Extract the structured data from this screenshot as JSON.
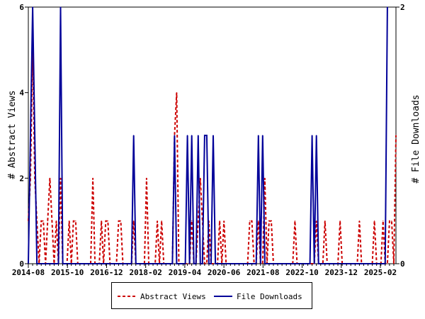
{
  "chart_data": {
    "type": "line",
    "x_tick_labels": [
      "2014-08",
      "2015-10",
      "2016-12",
      "2018-02",
      "2019-04",
      "2020-06",
      "2021-08",
      "2022-10",
      "2023-12",
      "2025-02"
    ],
    "left_axis": {
      "label": "# Abstract Views",
      "ticks": [
        "0",
        "2",
        "4",
        "6"
      ],
      "ylim": [
        0,
        6
      ]
    },
    "right_axis": {
      "label": "# File Downloads",
      "ticks": [
        "0",
        "2"
      ],
      "ylim": [
        0,
        2
      ]
    },
    "grid": false,
    "legend_position": "bottom",
    "series": [
      {
        "name": "Abstract Views",
        "axis": "left",
        "color": "#cc0000",
        "style": "dashed",
        "values": [
          1,
          2,
          5,
          2,
          1,
          0,
          1,
          1,
          0,
          1,
          2,
          1,
          0,
          1,
          0,
          2,
          0,
          0,
          0,
          1,
          0,
          1,
          1,
          0,
          0,
          0,
          0,
          0,
          0,
          0,
          2,
          0,
          0,
          0,
          1,
          0,
          1,
          1,
          0,
          0,
          0,
          0,
          1,
          1,
          0,
          0,
          0,
          0,
          0,
          1,
          0,
          0,
          0,
          0,
          0,
          2,
          0,
          0,
          0,
          0,
          1,
          0,
          1,
          0,
          0,
          0,
          0,
          0,
          3,
          4,
          0,
          0,
          0,
          0,
          0,
          0,
          1,
          0,
          0,
          1,
          2,
          1,
          0,
          0,
          1,
          0,
          0,
          0,
          0,
          1,
          0,
          1,
          0,
          0,
          0,
          0,
          0,
          0,
          0,
          0,
          0,
          0,
          0,
          1,
          1,
          0,
          0,
          1,
          0,
          0,
          2,
          0,
          1,
          1,
          0,
          0,
          0,
          0,
          0,
          0,
          0,
          0,
          0,
          0,
          1,
          0,
          0,
          0,
          0,
          0,
          0,
          0,
          0,
          0,
          1,
          0,
          0,
          0,
          1,
          0,
          0,
          0,
          0,
          0,
          0,
          1,
          0,
          0,
          0,
          0,
          0,
          0,
          0,
          0,
          1,
          0,
          0,
          0,
          0,
          0,
          0,
          1,
          0,
          0,
          0,
          1,
          0,
          0,
          1,
          1,
          0,
          3
        ]
      },
      {
        "name": "File Downloads",
        "axis": "right",
        "color": "#000099",
        "style": "solid",
        "values": [
          0,
          1,
          2,
          1,
          0,
          0,
          0,
          0,
          0,
          0,
          0,
          0,
          0,
          0,
          0,
          2,
          0,
          0,
          0,
          0,
          0,
          0,
          0,
          0,
          0,
          0,
          0,
          0,
          0,
          0,
          0,
          0,
          0,
          0,
          0,
          0,
          0,
          0,
          0,
          0,
          0,
          0,
          0,
          0,
          0,
          0,
          0,
          0,
          0,
          1,
          0,
          0,
          0,
          0,
          0,
          0,
          0,
          0,
          0,
          0,
          0,
          0,
          0,
          0,
          0,
          0,
          0,
          0,
          1,
          0,
          0,
          0,
          0,
          0,
          1,
          0,
          1,
          0,
          0,
          1,
          0,
          0,
          1,
          1,
          0,
          0,
          1,
          0,
          0,
          0,
          0,
          0,
          0,
          0,
          0,
          0,
          0,
          0,
          0,
          0,
          0,
          0,
          0,
          0,
          0,
          0,
          0,
          1,
          0,
          1,
          0,
          0,
          0,
          0,
          0,
          0,
          0,
          0,
          0,
          0,
          0,
          0,
          0,
          0,
          0,
          0,
          0,
          0,
          0,
          0,
          0,
          0,
          1,
          0,
          1,
          0,
          0,
          0,
          0,
          0,
          0,
          0,
          0,
          0,
          0,
          0,
          0,
          0,
          0,
          0,
          0,
          0,
          0,
          0,
          0,
          0,
          0,
          0,
          0,
          0,
          0,
          0,
          0,
          0,
          0,
          0,
          0,
          2
        ]
      }
    ]
  },
  "legend": {
    "items": [
      {
        "label": "Abstract Views",
        "color": "#cc0000"
      },
      {
        "label": "File Downloads",
        "color": "#000099"
      }
    ]
  }
}
